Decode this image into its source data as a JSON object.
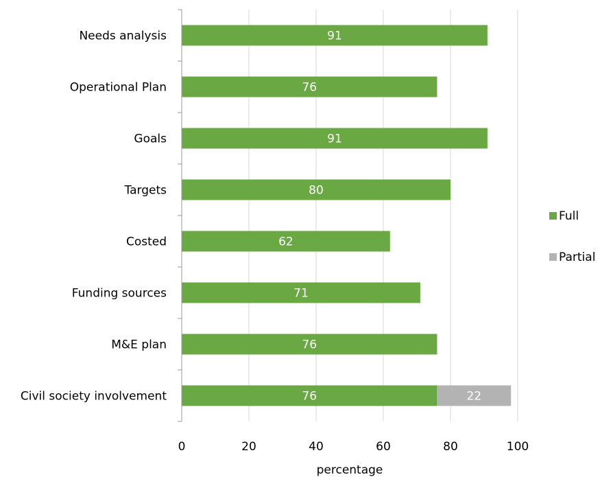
{
  "chart_data": {
    "type": "bar",
    "orientation": "horizontal",
    "stacked": true,
    "categories": [
      "Needs analysis",
      "Operational Plan",
      "Goals",
      "Targets",
      "Costed",
      "Funding sources",
      "M&E plan",
      "Civil society involvement"
    ],
    "series": [
      {
        "name": "Full",
        "color": "#6aa843",
        "values": [
          91,
          76,
          91,
          80,
          62,
          71,
          76,
          76
        ]
      },
      {
        "name": "Partial",
        "color": "#b3b3b3",
        "values": [
          0,
          0,
          0,
          0,
          0,
          0,
          0,
          22
        ]
      }
    ],
    "xlabel": "percentage",
    "xlim": [
      0,
      100
    ],
    "xticks": [
      0,
      20,
      40,
      60,
      80,
      100
    ],
    "grid": "vertical",
    "legend_position": "right"
  }
}
